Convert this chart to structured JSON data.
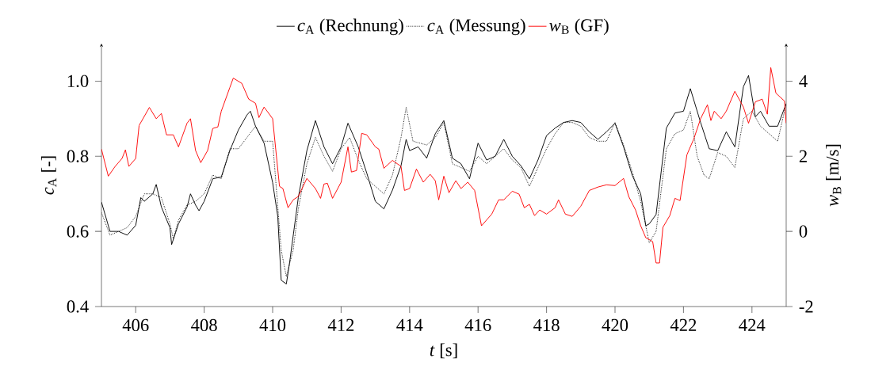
{
  "chart_data": {
    "type": "line",
    "xlabel": "*t* [s]",
    "ylabel": "*c*$_{A}$ [-]",
    "y2label": "*w*$_{B}$ [m/s]",
    "xlim": [
      405,
      425
    ],
    "xticks": [
      406,
      408,
      410,
      412,
      414,
      416,
      418,
      420,
      422,
      424
    ],
    "ylim": [
      0.4,
      1.1
    ],
    "yticks": [
      0.4,
      0.6,
      0.8,
      {
        "value": 1,
        "label": "1.0"
      }
    ],
    "y2lim": [
      -2,
      5
    ],
    "y2ticks": [
      -2,
      0,
      2,
      4
    ],
    "legend": "top",
    "marker": "none",
    "grid": false,
    "series": [
      {
        "name": "*c*$_{A}$ (Rechnung)",
        "color": "#000000",
        "line_style": "solid",
        "axis": "y",
        "x": [
          405.0,
          405.25,
          405.5,
          405.75,
          406.0,
          406.15,
          406.25,
          406.5,
          406.6,
          406.75,
          407.0,
          407.05,
          407.25,
          407.5,
          407.6,
          407.75,
          407.85,
          408.0,
          408.25,
          408.5,
          408.75,
          409.0,
          409.25,
          409.35,
          409.5,
          409.75,
          410.0,
          410.15,
          410.25,
          410.4,
          410.5,
          410.75,
          411.0,
          411.25,
          411.5,
          411.75,
          412.0,
          412.2,
          412.5,
          412.75,
          413.0,
          413.25,
          413.5,
          413.75,
          413.9,
          414.0,
          414.25,
          414.5,
          414.75,
          415.0,
          415.25,
          415.5,
          415.75,
          416.0,
          416.25,
          416.5,
          416.75,
          417.0,
          417.25,
          417.5,
          417.75,
          418.0,
          418.25,
          418.5,
          418.75,
          419.0,
          419.25,
          419.5,
          419.75,
          420.0,
          420.25,
          420.5,
          420.75,
          420.9,
          421.0,
          421.2,
          421.5,
          421.75,
          422.0,
          422.2,
          422.5,
          422.75,
          423.0,
          423.25,
          423.5,
          423.75,
          423.9,
          424.1,
          424.25,
          424.5,
          424.75,
          425.0
        ],
        "values": [
          0.678,
          0.6,
          0.6,
          0.59,
          0.616,
          0.69,
          0.68,
          0.7,
          0.725,
          0.665,
          0.61,
          0.565,
          0.62,
          0.665,
          0.7,
          0.67,
          0.655,
          0.68,
          0.74,
          0.745,
          0.815,
          0.87,
          0.91,
          0.92,
          0.88,
          0.835,
          0.73,
          0.64,
          0.47,
          0.46,
          0.52,
          0.69,
          0.815,
          0.895,
          0.825,
          0.78,
          0.825,
          0.888,
          0.825,
          0.755,
          0.68,
          0.66,
          0.71,
          0.775,
          0.845,
          0.815,
          0.825,
          0.795,
          0.86,
          0.895,
          0.795,
          0.78,
          0.74,
          0.835,
          0.79,
          0.8,
          0.845,
          0.8,
          0.775,
          0.74,
          0.79,
          0.855,
          0.875,
          0.89,
          0.895,
          0.89,
          0.865,
          0.845,
          0.865,
          0.888,
          0.825,
          0.75,
          0.7,
          0.615,
          0.62,
          0.645,
          0.875,
          0.915,
          0.92,
          0.98,
          0.89,
          0.82,
          0.815,
          0.865,
          0.825,
          0.985,
          1.015,
          0.905,
          0.92,
          0.88,
          0.88,
          0.94
        ]
      },
      {
        "name": "*c*$_{A}$ (Messung)",
        "color": "#000000",
        "line_style": "dotted",
        "axis": "y",
        "x": [
          405.0,
          405.25,
          405.5,
          405.75,
          406.0,
          406.25,
          406.5,
          406.75,
          407.0,
          407.1,
          407.25,
          407.5,
          407.75,
          408.0,
          408.25,
          408.5,
          408.75,
          409.0,
          409.25,
          409.5,
          409.75,
          410.0,
          410.25,
          410.4,
          410.6,
          410.75,
          411.0,
          411.25,
          411.5,
          411.75,
          412.0,
          412.25,
          412.5,
          412.75,
          413.0,
          413.25,
          413.5,
          413.75,
          413.9,
          414.1,
          414.5,
          414.75,
          415.0,
          415.25,
          415.5,
          415.75,
          416.0,
          416.25,
          416.5,
          416.75,
          417.0,
          417.25,
          417.5,
          417.75,
          418.0,
          418.25,
          418.5,
          418.75,
          419.0,
          419.25,
          419.5,
          419.75,
          420.0,
          420.25,
          420.5,
          420.75,
          421.0,
          421.2,
          421.5,
          421.75,
          422.0,
          422.2,
          422.4,
          422.6,
          422.75,
          423.0,
          423.25,
          423.5,
          423.75,
          424.0,
          424.25,
          424.5,
          424.75,
          425.0
        ],
        "values": [
          0.65,
          0.59,
          0.6,
          0.61,
          0.64,
          0.7,
          0.7,
          0.69,
          0.62,
          0.58,
          0.63,
          0.67,
          0.68,
          0.7,
          0.75,
          0.74,
          0.82,
          0.82,
          0.85,
          0.88,
          0.84,
          0.84,
          0.55,
          0.48,
          0.55,
          0.66,
          0.78,
          0.85,
          0.8,
          0.76,
          0.82,
          0.85,
          0.79,
          0.74,
          0.72,
          0.7,
          0.75,
          0.85,
          0.93,
          0.84,
          0.83,
          0.85,
          0.89,
          0.78,
          0.77,
          0.76,
          0.8,
          0.78,
          0.8,
          0.82,
          0.79,
          0.77,
          0.72,
          0.77,
          0.82,
          0.86,
          0.89,
          0.89,
          0.88,
          0.85,
          0.84,
          0.84,
          0.89,
          0.83,
          0.76,
          0.68,
          0.57,
          0.6,
          0.82,
          0.86,
          0.87,
          0.92,
          0.8,
          0.75,
          0.74,
          0.81,
          0.8,
          0.77,
          0.9,
          0.92,
          0.88,
          0.86,
          0.84,
          0.94
        ]
      },
      {
        "name": "*w*$_{B}$ (GF)",
        "color": "#ff0000",
        "line_style": "solid",
        "axis": "y2",
        "x": [
          405.0,
          405.2,
          405.4,
          405.6,
          405.7,
          405.8,
          406.0,
          406.1,
          406.4,
          406.6,
          406.75,
          406.9,
          407.1,
          407.25,
          407.5,
          407.6,
          407.75,
          407.9,
          408.1,
          408.25,
          408.4,
          408.5,
          408.75,
          408.85,
          409.1,
          409.3,
          409.5,
          409.6,
          409.75,
          410.0,
          410.2,
          410.3,
          410.45,
          410.6,
          410.75,
          411.0,
          411.25,
          411.4,
          411.5,
          411.6,
          411.75,
          412.0,
          412.2,
          412.3,
          412.45,
          412.6,
          412.75,
          413.0,
          413.1,
          413.25,
          413.5,
          413.75,
          413.85,
          414.0,
          414.2,
          414.4,
          414.6,
          414.75,
          414.85,
          415.0,
          415.15,
          415.35,
          415.5,
          415.7,
          415.9,
          416.1,
          416.4,
          416.6,
          416.75,
          417.0,
          417.2,
          417.35,
          417.5,
          417.65,
          417.8,
          418.0,
          418.25,
          418.35,
          418.55,
          418.75,
          419.0,
          419.25,
          419.5,
          419.75,
          420.0,
          420.25,
          420.4,
          420.6,
          420.75,
          420.9,
          421.1,
          421.2,
          421.3,
          421.4,
          421.6,
          421.75,
          421.9,
          422.1,
          422.3,
          422.5,
          422.7,
          422.8,
          422.9,
          423.1,
          423.25,
          423.5,
          423.75,
          423.9,
          424.1,
          424.3,
          424.45,
          424.55,
          424.7,
          424.95,
          425.0
        ],
        "values": [
          2.19,
          1.47,
          1.73,
          1.94,
          2.17,
          1.73,
          1.94,
          2.82,
          3.3,
          3.0,
          3.14,
          2.57,
          2.57,
          2.25,
          2.88,
          3.0,
          2.15,
          1.83,
          2.15,
          2.74,
          2.78,
          3.2,
          3.83,
          4.08,
          3.94,
          3.52,
          3.41,
          3.03,
          3.31,
          3.0,
          1.2,
          1.14,
          0.63,
          0.84,
          0.93,
          1.41,
          1.14,
          0.88,
          1.26,
          1.28,
          0.88,
          1.31,
          2.25,
          1.58,
          1.62,
          2.61,
          2.57,
          2.25,
          2.19,
          1.68,
          1.89,
          1.73,
          1.09,
          1.14,
          1.66,
          1.31,
          1.52,
          1.35,
          0.84,
          1.47,
          1.03,
          1.35,
          1.14,
          1.31,
          1.09,
          0.15,
          0.46,
          0.84,
          0.84,
          1.07,
          0.99,
          0.63,
          0.72,
          0.42,
          0.57,
          0.46,
          0.63,
          0.84,
          0.46,
          0.4,
          0.67,
          1.09,
          1.18,
          1.24,
          1.22,
          1.41,
          0.93,
          0.57,
          0.15,
          -0.17,
          -0.27,
          -0.84,
          -0.84,
          0.11,
          0.42,
          0.88,
          0.82,
          2.04,
          2.46,
          3.0,
          3.37,
          2.95,
          3.2,
          3.0,
          3.2,
          3.73,
          3.31,
          2.88,
          3.45,
          3.52,
          3.12,
          4.36,
          3.68,
          3.47,
          2.88
        ]
      }
    ]
  }
}
